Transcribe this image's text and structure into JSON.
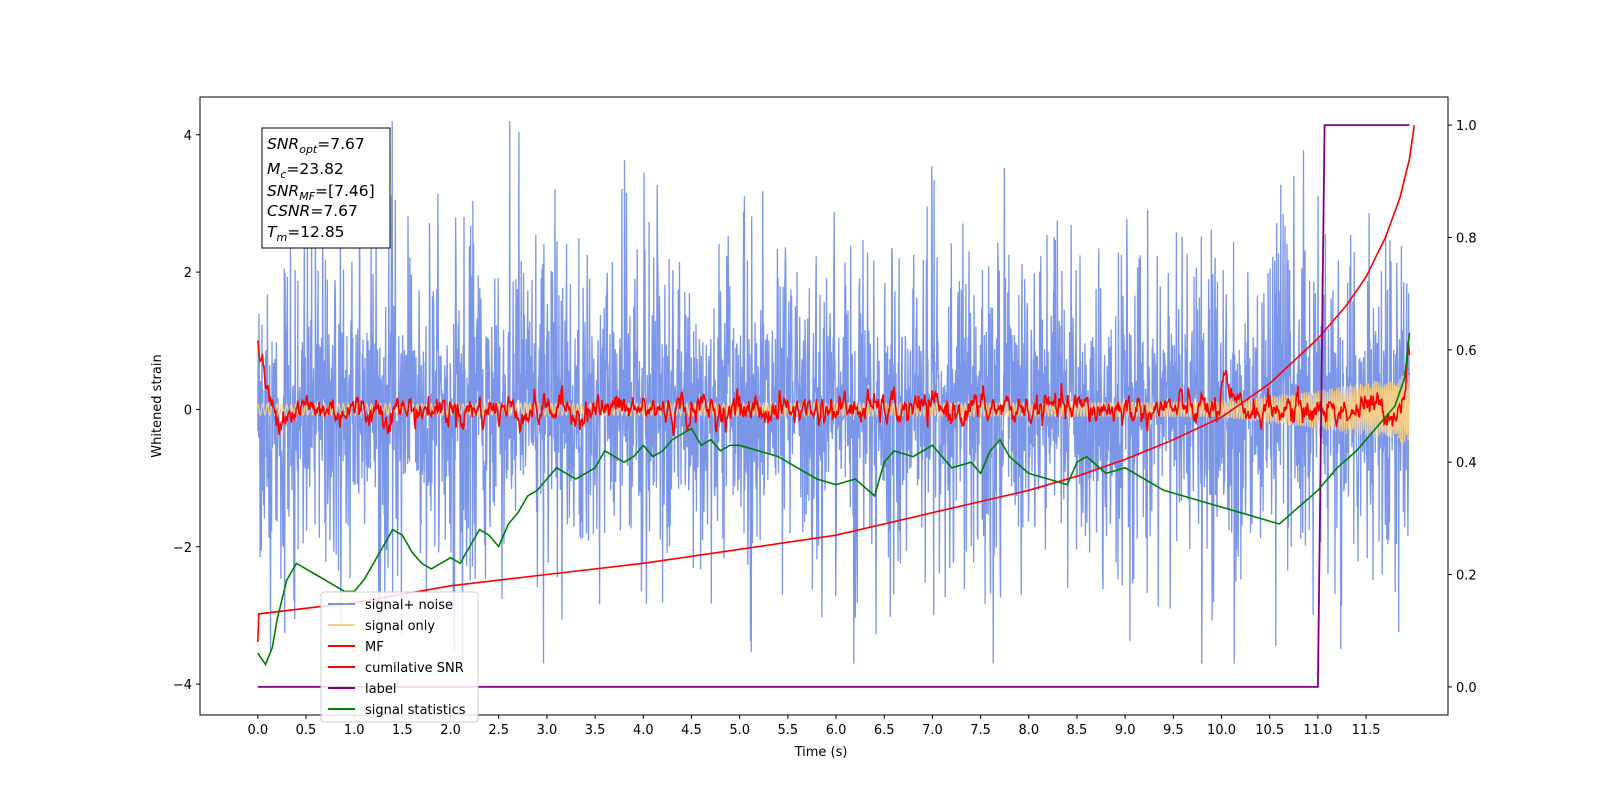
{
  "chart_data": {
    "type": "line",
    "xlabel": "Time (s)",
    "ylabel_left": "Whitened strain",
    "xlim": [
      -0.6,
      12.35
    ],
    "ylim_left": [
      -4.45,
      4.55
    ],
    "ylim_right": [
      -0.05,
      1.05
    ],
    "x_ticks": [
      "0.0",
      "0.5",
      "1.0",
      "1.5",
      "2.0",
      "2.5",
      "3.0",
      "3.5",
      "4.0",
      "4.5",
      "5.0",
      "5.5",
      "6.0",
      "6.5",
      "7.0",
      "7.5",
      "8.0",
      "8.5",
      "9.0",
      "9.5",
      "10.0",
      "10.5",
      "11.0",
      "11.5"
    ],
    "y_ticks_left": [
      "−4",
      "−2",
      "0",
      "2",
      "4"
    ],
    "y_ticks_right": [
      "0.0",
      "0.2",
      "0.4",
      "0.6",
      "0.8",
      "1.0"
    ],
    "info_box": {
      "snr_opt": {
        "sym": "SNR",
        "sub": "opt",
        "value": "=7.67"
      },
      "mc": {
        "sym": "M",
        "sub": "c",
        "value": "=23.82"
      },
      "snr_mf": {
        "sym": "SNR",
        "sub": "MF",
        "value": "=[7.46]"
      },
      "csnr": {
        "sym": "CSNR",
        "sub": "",
        "value": "=7.67"
      },
      "tm": {
        "sym": "T",
        "sub": "m",
        "value": "=12.85"
      }
    },
    "legend": {
      "placement": "lower-left",
      "entries": [
        {
          "label": "signal+ noise",
          "color": "#7b96e8"
        },
        {
          "label": "signal only",
          "color": "#f5cf8a"
        },
        {
          "label": "MF",
          "color": "#ff0000"
        },
        {
          "label": "cumilative SNR",
          "color": "#ff0000"
        },
        {
          "label": "label",
          "color": "#800080"
        },
        {
          "label": "signal statistics",
          "color": "#008000"
        }
      ]
    },
    "series": [
      {
        "name": "signal+ noise",
        "axis": "left",
        "color": "#7b96e8",
        "description_range": [
          -3.7,
          4.2
        ]
      },
      {
        "name": "signal only",
        "axis": "left",
        "color": "#f5cf8a"
      },
      {
        "name": "MF",
        "axis": "left",
        "color": "#ff0000"
      },
      {
        "name": "cumilative SNR",
        "axis": "right",
        "color": "#ff0000",
        "x": [
          0.0,
          0.01,
          1.0,
          2.0,
          3.0,
          4.0,
          5.0,
          6.0,
          7.0,
          7.5,
          8.0,
          8.5,
          9.0,
          9.5,
          10.0,
          10.5,
          11.0,
          11.3,
          11.5,
          11.7,
          11.85,
          11.95,
          12.0
        ],
        "y": [
          0.08,
          0.13,
          0.15,
          0.18,
          0.2,
          0.22,
          0.245,
          0.27,
          0.31,
          0.33,
          0.35,
          0.375,
          0.405,
          0.44,
          0.48,
          0.54,
          0.62,
          0.68,
          0.73,
          0.8,
          0.87,
          0.94,
          1.0
        ]
      },
      {
        "name": "label",
        "axis": "right",
        "color": "#800080",
        "x": [
          0.0,
          11.0,
          11.07,
          11.95
        ],
        "y": [
          0.0,
          0.0,
          1.0,
          1.0
        ]
      },
      {
        "name": "signal statistics",
        "axis": "right",
        "color": "#008000",
        "x": [
          0.0,
          0.08,
          0.15,
          0.2,
          0.3,
          0.4,
          0.5,
          0.6,
          0.7,
          0.8,
          0.9,
          1.0,
          1.1,
          1.2,
          1.3,
          1.4,
          1.5,
          1.6,
          1.7,
          1.8,
          1.9,
          2.0,
          2.1,
          2.2,
          2.3,
          2.4,
          2.5,
          2.6,
          2.7,
          2.8,
          2.9,
          3.0,
          3.1,
          3.2,
          3.3,
          3.4,
          3.5,
          3.6,
          3.7,
          3.8,
          3.9,
          4.0,
          4.1,
          4.2,
          4.3,
          4.4,
          4.5,
          4.6,
          4.7,
          4.8,
          4.9,
          5.0,
          5.2,
          5.4,
          5.6,
          5.8,
          6.0,
          6.2,
          6.4,
          6.5,
          6.6,
          6.8,
          7.0,
          7.2,
          7.4,
          7.5,
          7.6,
          7.7,
          7.8,
          8.0,
          8.2,
          8.4,
          8.5,
          8.6,
          8.8,
          9.0,
          9.2,
          9.4,
          9.6,
          9.8,
          10.0,
          10.2,
          10.4,
          10.6,
          10.8,
          11.0,
          11.1,
          11.2,
          11.4,
          11.6,
          11.8,
          11.9,
          11.95
        ],
        "y": [
          0.06,
          0.04,
          0.07,
          0.12,
          0.19,
          0.22,
          0.21,
          0.2,
          0.19,
          0.18,
          0.17,
          0.17,
          0.19,
          0.22,
          0.25,
          0.28,
          0.27,
          0.24,
          0.22,
          0.21,
          0.22,
          0.23,
          0.22,
          0.25,
          0.28,
          0.27,
          0.25,
          0.29,
          0.31,
          0.34,
          0.35,
          0.37,
          0.39,
          0.38,
          0.37,
          0.38,
          0.39,
          0.42,
          0.41,
          0.4,
          0.41,
          0.43,
          0.41,
          0.42,
          0.44,
          0.45,
          0.46,
          0.43,
          0.44,
          0.42,
          0.43,
          0.43,
          0.42,
          0.41,
          0.39,
          0.37,
          0.36,
          0.37,
          0.34,
          0.4,
          0.42,
          0.41,
          0.43,
          0.39,
          0.4,
          0.38,
          0.42,
          0.44,
          0.41,
          0.38,
          0.37,
          0.36,
          0.4,
          0.41,
          0.38,
          0.39,
          0.37,
          0.35,
          0.34,
          0.33,
          0.32,
          0.31,
          0.3,
          0.29,
          0.32,
          0.35,
          0.37,
          0.39,
          0.42,
          0.46,
          0.5,
          0.55,
          0.63
        ]
      }
    ]
  }
}
